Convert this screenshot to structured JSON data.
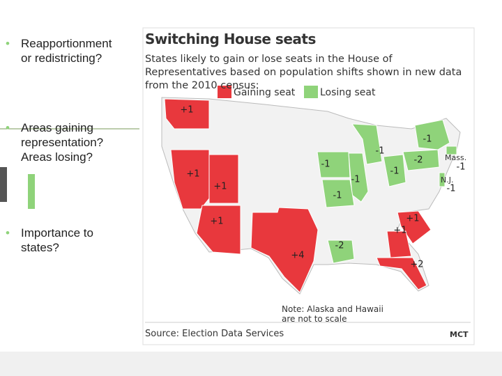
{
  "bullets": [
    "Reapportionment or redistricting?",
    "Areas gaining representation? Areas losing?",
    "Importance to states?"
  ],
  "map": {
    "title": "Switching House seats",
    "subtitle": "States likely to gain or lose seats in the House of Representatives based on population shifts shown in new data from the 2010 census:",
    "legend": [
      {
        "label": "Gaining seat",
        "color": "#e8383d",
        "state_labels": [
          "+1",
          "+1",
          "+1",
          "+1",
          "+4",
          "+1",
          "+1",
          "+2"
        ]
      },
      {
        "label": "Losing seat",
        "color": "#8fd37a",
        "state_labels": [
          "-1",
          "-1",
          "-1",
          "-1",
          "-1",
          "-2",
          "-1",
          "-2",
          "-1",
          "-1"
        ]
      }
    ],
    "callouts": [
      "Mass.",
      "N.J."
    ],
    "note": "Note: Alaska and Hawaii are not to scale",
    "source": "Source: Election Data Services",
    "credit": "MCT"
  }
}
